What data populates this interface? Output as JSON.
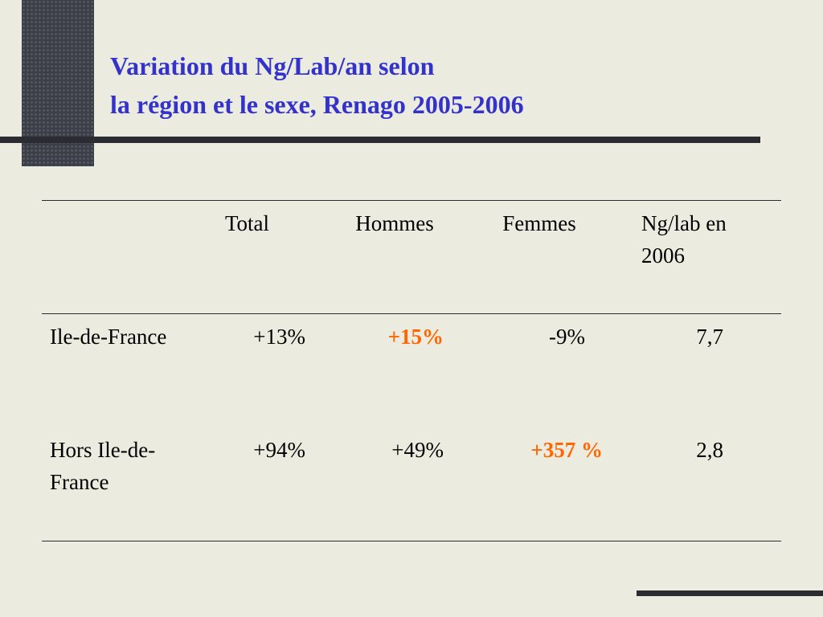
{
  "title": {
    "lines": [
      "Variation du Ng/Lab/an selon",
      "la région et le sexe, Renago 2005-2006"
    ]
  },
  "table": {
    "header": [
      "Total",
      "Hommes",
      "Femmes",
      "Ng/lab en 2006"
    ],
    "rows": [
      [
        "Ile-de-France",
        "+13%",
        "+15%",
        "-9%",
        "7,7"
      ],
      [
        "Hors Ile-de-France",
        "+94%",
        "+49%",
        "+357 %",
        "2,8"
      ]
    ]
  }
}
